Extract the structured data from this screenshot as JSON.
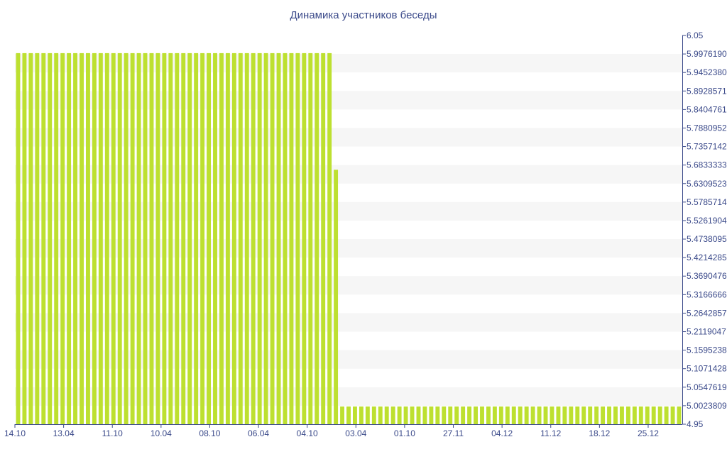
{
  "chart_data": {
    "type": "bar",
    "title": "Динамика участников беседы",
    "xlabel": "",
    "ylabel": "",
    "ylim": [
      4.95,
      6.05
    ],
    "y_ticks": [
      "6.05",
      "5.9976190",
      "5.9452380",
      "5.8928571",
      "5.8404761",
      "5.7880952",
      "5.7357142",
      "5.6833333",
      "5.6309523",
      "5.5785714",
      "5.5261904",
      "5.4738095",
      "5.4214285",
      "5.3690476",
      "5.3166666",
      "5.2642857",
      "5.2119047",
      "5.1595238",
      "5.1071428",
      "5.0547619",
      "5.0023809",
      "4.95"
    ],
    "x_tick_labels": [
      "14.10",
      "13.04",
      "11.10",
      "10.04",
      "08.10",
      "06.04",
      "04.10",
      "03.04",
      "01.10",
      "27.11",
      "04.12",
      "11.12",
      "18.12",
      "25.12"
    ],
    "bar_color": "#bde030",
    "band_color": "#f6f6f6",
    "axis_color": "#3b4a8a",
    "series": [
      {
        "values": [
          6,
          6,
          6,
          6,
          6,
          6,
          6,
          6,
          6,
          6,
          6,
          6,
          6,
          6,
          6,
          6,
          6,
          6,
          6,
          6,
          6,
          6,
          6,
          6,
          6,
          6,
          6,
          6,
          6,
          6,
          6,
          6,
          6,
          6,
          6,
          6,
          6,
          6,
          6,
          6,
          6,
          6,
          6,
          6,
          6,
          6,
          6,
          6,
          6,
          6,
          5.67,
          5,
          5,
          5,
          5,
          5,
          5,
          5,
          5,
          5,
          5,
          5,
          5,
          5,
          5,
          5,
          5,
          5,
          5,
          5,
          5,
          5,
          5,
          5,
          5,
          5,
          5,
          5,
          5,
          5,
          5,
          5,
          5,
          5,
          5,
          5,
          5,
          5,
          5,
          5,
          5,
          5,
          5,
          5,
          5,
          5,
          5,
          5,
          5,
          5,
          5,
          5,
          5,
          5,
          5
        ]
      }
    ]
  }
}
